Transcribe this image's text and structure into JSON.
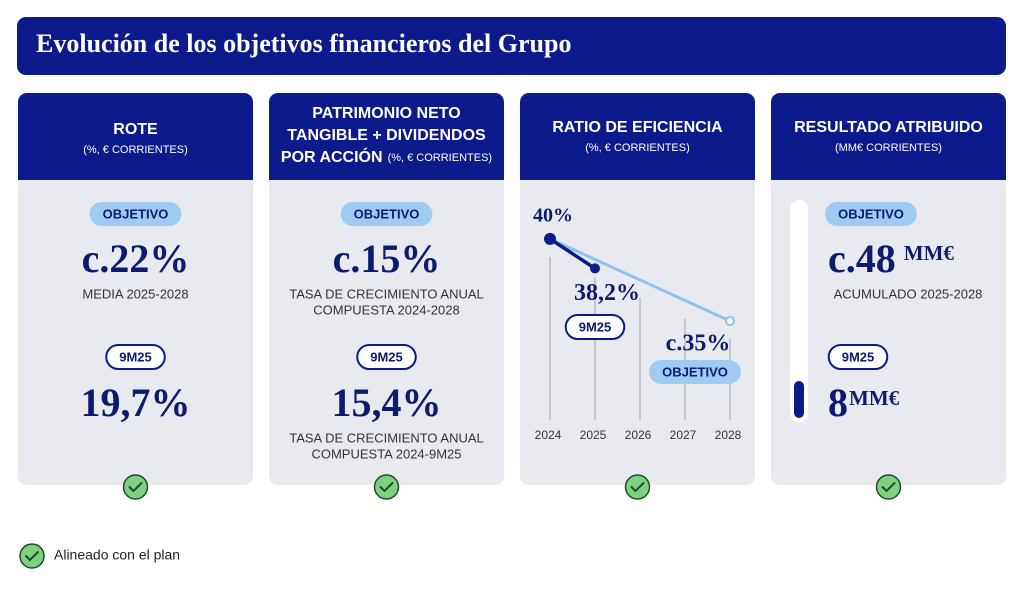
{
  "title": "Evolución de los objetivos financieros del Grupo",
  "cards": [
    {
      "title_lines": [
        "ROTE"
      ],
      "subtitle": "(%, € CORRIENTES)",
      "target_badge": "OBJETIVO",
      "target_value": "c.22%",
      "target_note_lines": [
        "MEDIA 2025-2028"
      ],
      "current_badge": "9M25",
      "current_value": "19,7%"
    },
    {
      "title_lines": [
        "PATRIMONIO NETO",
        "TANGIBLE + DIVIDENDOS",
        "POR ACCIÓN"
      ],
      "subtitle": "(%, € CORRIENTES)",
      "target_badge": "OBJETIVO",
      "target_value": "c.15%",
      "target_note_lines": [
        "TASA DE CRECIMIENTO ANUAL",
        "COMPUESTA 2024-2028"
      ],
      "current_badge": "9M25",
      "current_value": "15,4%",
      "current_note_lines": [
        "TASA DE CRECIMIENTO ANUAL",
        "COMPUESTA 2024-9M25"
      ]
    },
    {
      "title_lines": [
        "RATIO DE EFICIENCIA"
      ],
      "subtitle": "(%, € CORRIENTES)",
      "chart": {
        "type": "line",
        "xlim": [
          2024,
          2028
        ],
        "xticks": [
          2024,
          2025,
          2026,
          2027,
          2028
        ],
        "ylim": [
          28,
          42
        ],
        "series": [
          {
            "x": [
              2024,
              2028
            ],
            "values": [
              40,
              35
            ],
            "value_labels": [
              "40%",
              "c.35%"
            ],
            "color": "#8fc3ef",
            "badge": "OBJETIVO"
          },
          {
            "x": [
              2024,
              2025
            ],
            "values": [
              40,
              38.2
            ],
            "value_labels": [
              null,
              "38,2%"
            ],
            "color": "#0b1b8a",
            "badge": "9M25"
          }
        ]
      }
    },
    {
      "title_lines": [
        "RESULTADO ATRIBUIDO"
      ],
      "subtitle": "(MM€ CORRIENTES)",
      "target_badge": "OBJETIVO",
      "target_value": {
        "value": 48,
        "label": "c.48"
      },
      "unit": "MM€",
      "target_note_lines": [
        "ACUMULADO 2025-2028"
      ],
      "current_badge": "9M25",
      "current_value": 8
    }
  ],
  "legend": "Alineado con el plan"
}
